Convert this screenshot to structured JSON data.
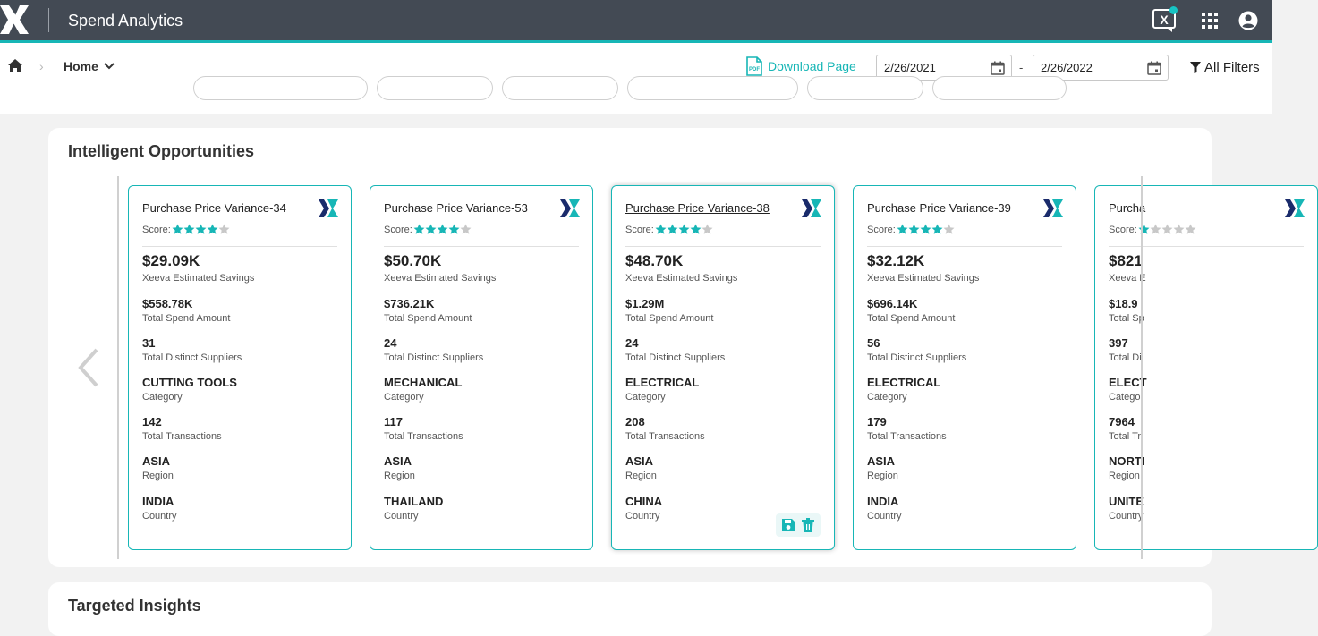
{
  "app": {
    "title": "Spend Analytics"
  },
  "breadcrumb": {
    "home": "Home"
  },
  "toolbar": {
    "download_label": "Download Page",
    "start_date": "2/26/2021",
    "date_separator": "-",
    "end_date": "2/26/2022",
    "filters_label": "All Filters"
  },
  "opportunities": {
    "title": "Intelligent Opportunities",
    "score_label": "Score:",
    "cards": [
      {
        "title": "Purchase Price Variance-34",
        "stars": 4,
        "savings": "$29.09K",
        "savings_label": "Xeeva Estimated Savings",
        "spend": "$558.78K",
        "spend_label": "Total Spend Amount",
        "suppliers": "31",
        "suppliers_label": "Total Distinct Suppliers",
        "category": "CUTTING TOOLS",
        "category_label": "Category",
        "transactions": "142",
        "transactions_label": "Total Transactions",
        "region": "ASIA",
        "region_label": "Region",
        "country": "INDIA",
        "country_label": "Country"
      },
      {
        "title": "Purchase Price Variance-53",
        "stars": 4,
        "savings": "$50.70K",
        "savings_label": "Xeeva Estimated Savings",
        "spend": "$736.21K",
        "spend_label": "Total Spend Amount",
        "suppliers": "24",
        "suppliers_label": "Total Distinct Suppliers",
        "category": "MECHANICAL",
        "category_label": "Category",
        "transactions": "117",
        "transactions_label": "Total Transactions",
        "region": "ASIA",
        "region_label": "Region",
        "country": "THAILAND",
        "country_label": "Country"
      },
      {
        "title": "Purchase Price Variance-38",
        "stars": 4,
        "savings": "$48.70K",
        "savings_label": "Xeeva Estimated Savings",
        "spend": "$1.29M",
        "spend_label": "Total Spend Amount",
        "suppliers": "24",
        "suppliers_label": "Total Distinct Suppliers",
        "category": "ELECTRICAL",
        "category_label": "Category",
        "transactions": "208",
        "transactions_label": "Total Transactions",
        "region": "ASIA",
        "region_label": "Region",
        "country": "CHINA",
        "country_label": "Country"
      },
      {
        "title": "Purchase Price Variance-39",
        "stars": 4,
        "savings": "$32.12K",
        "savings_label": "Xeeva Estimated Savings",
        "spend": "$696.14K",
        "spend_label": "Total Spend Amount",
        "suppliers": "56",
        "suppliers_label": "Total Distinct Suppliers",
        "category": "ELECTRICAL",
        "category_label": "Category",
        "transactions": "179",
        "transactions_label": "Total Transactions",
        "region": "ASIA",
        "region_label": "Region",
        "country": "INDIA",
        "country_label": "Country"
      },
      {
        "title": "Purcha",
        "stars": 1,
        "savings": "$821",
        "savings_label": "Xeeva E",
        "spend": "$18.9",
        "spend_label": "Total Sp",
        "suppliers": "397",
        "suppliers_label": "Total Di",
        "category": "ELECT",
        "category_label": "Catego",
        "transactions": "7964",
        "transactions_label": "Total Tr",
        "region": "NORTI",
        "region_label": "Region",
        "country": "UNITE",
        "country_label": "Country"
      }
    ]
  },
  "insights": {
    "title": "Targeted Insights"
  },
  "colors": {
    "accent": "#17b6b6",
    "topbar": "#434a54",
    "star_empty": "#c8c8c8"
  }
}
